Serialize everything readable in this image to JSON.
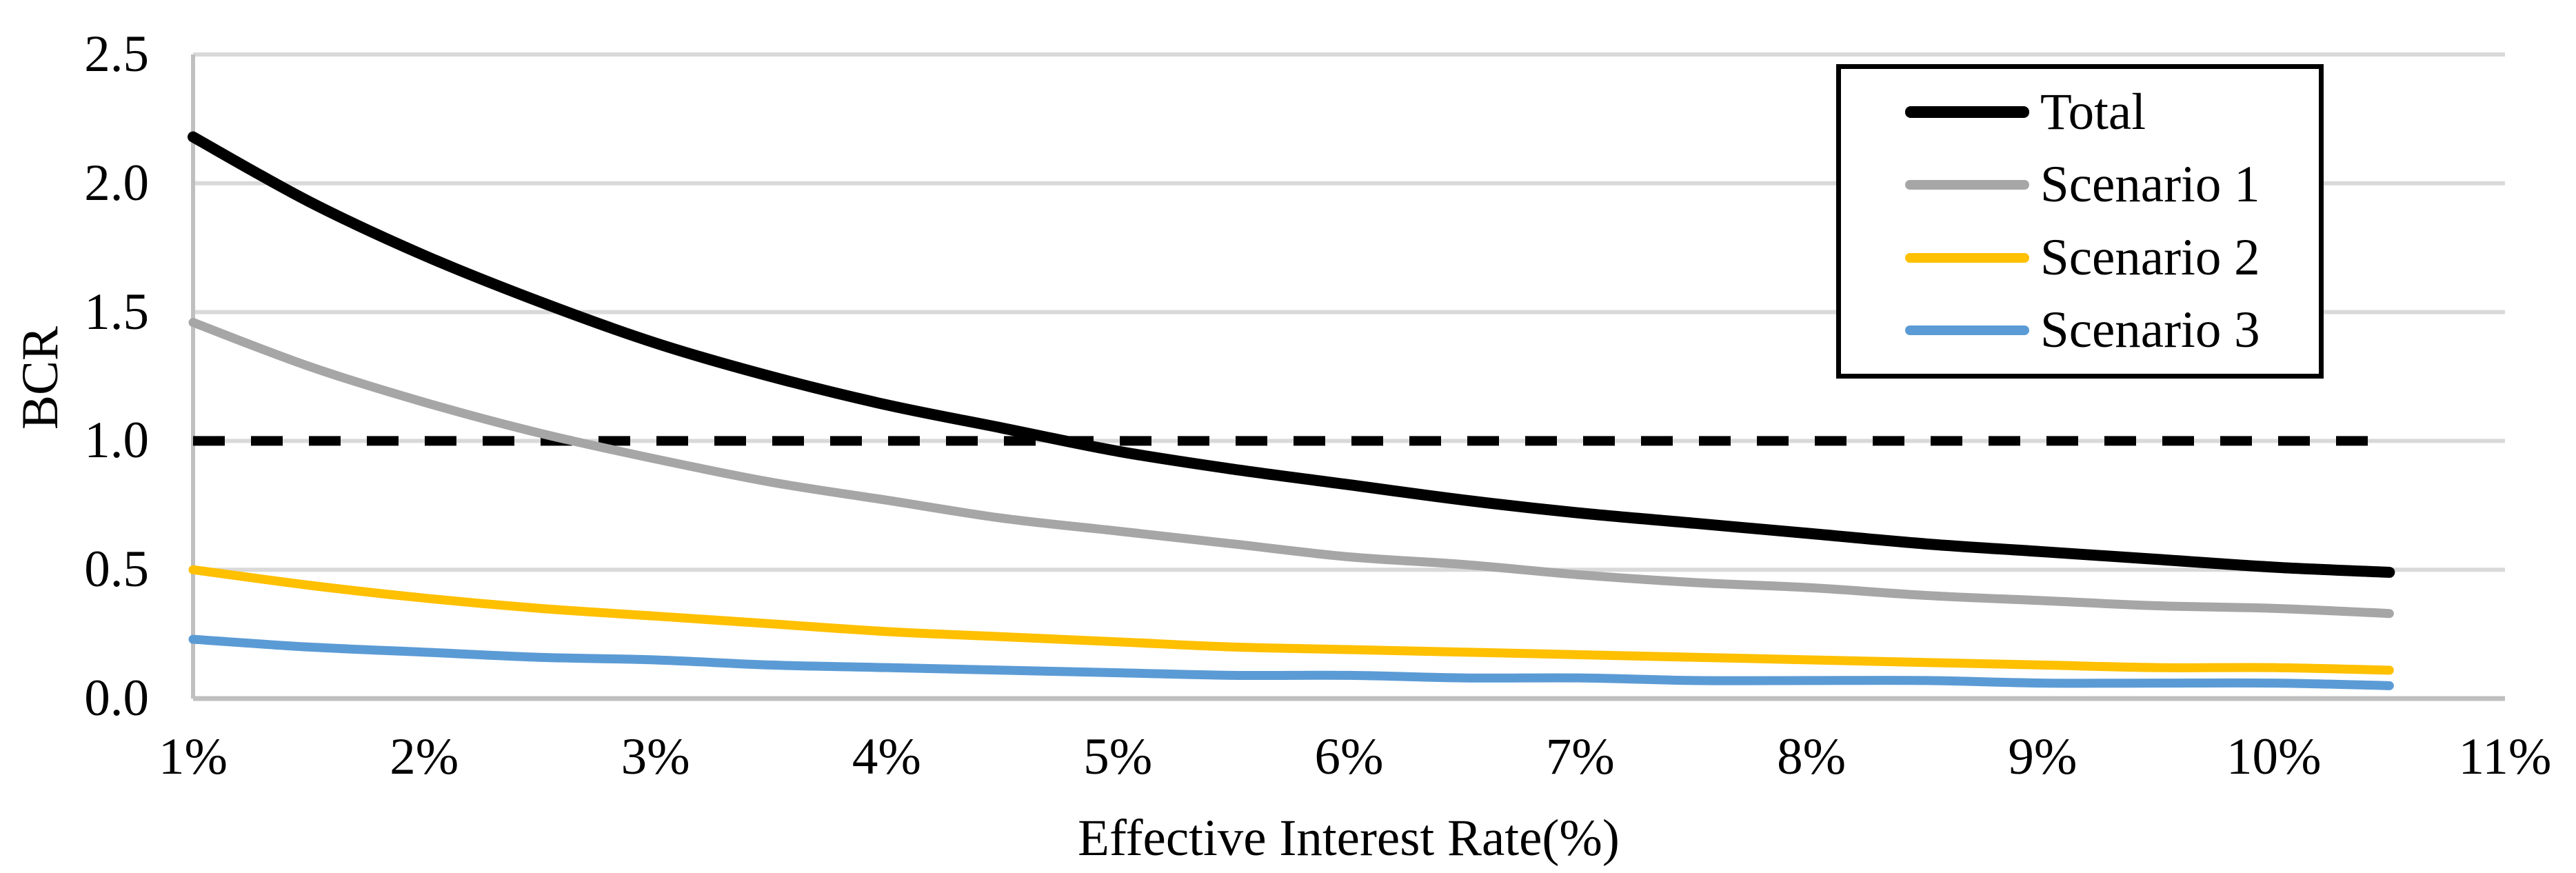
{
  "chart_data": {
    "type": "line",
    "title": "",
    "xlabel": "Effective Interest Rate(%)",
    "ylabel": "BCR",
    "x_range": [
      1,
      11
    ],
    "y_range": [
      0,
      2.5
    ],
    "x_tick_labels": [
      "1%",
      "2%",
      "3%",
      "4%",
      "5%",
      "6%",
      "7%",
      "8%",
      "9%",
      "10%",
      "11%"
    ],
    "y_tick_labels": [
      "0.0",
      "0.5",
      "1.0",
      "1.5",
      "2.0",
      "2.5"
    ],
    "grid": "horizontal",
    "legend_position": "top-right",
    "x": [
      1,
      1.5,
      2,
      2.5,
      3,
      3.5,
      4,
      4.5,
      5,
      5.5,
      6,
      6.5,
      7,
      7.5,
      8,
      8.5,
      9,
      9.5,
      10,
      10.5
    ],
    "series": [
      {
        "name": "Total",
        "color": "#000000",
        "values": [
          2.18,
          1.93,
          1.72,
          1.54,
          1.38,
          1.25,
          1.14,
          1.05,
          0.96,
          0.89,
          0.83,
          0.77,
          0.72,
          0.68,
          0.64,
          0.6,
          0.57,
          0.54,
          0.51,
          0.49
        ]
      },
      {
        "name": "Scenario 1",
        "color": "#A6A6A6",
        "values": [
          1.46,
          1.29,
          1.15,
          1.03,
          0.93,
          0.84,
          0.77,
          0.7,
          0.65,
          0.6,
          0.55,
          0.52,
          0.48,
          0.45,
          0.43,
          0.4,
          0.38,
          0.36,
          0.35,
          0.33
        ]
      },
      {
        "name": "Scenario 2",
        "color": "#FFC000",
        "values": [
          0.5,
          0.44,
          0.39,
          0.35,
          0.32,
          0.29,
          0.26,
          0.24,
          0.22,
          0.2,
          0.19,
          0.18,
          0.17,
          0.16,
          0.15,
          0.14,
          0.13,
          0.12,
          0.12,
          0.11
        ]
      },
      {
        "name": "Scenario 3",
        "color": "#5B9BD5",
        "values": [
          0.23,
          0.2,
          0.18,
          0.16,
          0.15,
          0.13,
          0.12,
          0.11,
          0.1,
          0.09,
          0.09,
          0.08,
          0.08,
          0.07,
          0.07,
          0.07,
          0.06,
          0.06,
          0.06,
          0.05
        ]
      }
    ],
    "reference_line": {
      "value": 1.0,
      "style": "dashed",
      "color": "#000000"
    },
    "colors": {
      "gridline": "#D9D9D9",
      "axis_line": "#BFBFBF",
      "text": "#000000",
      "legend_border": "#000000",
      "background": "#FFFFFF"
    }
  }
}
